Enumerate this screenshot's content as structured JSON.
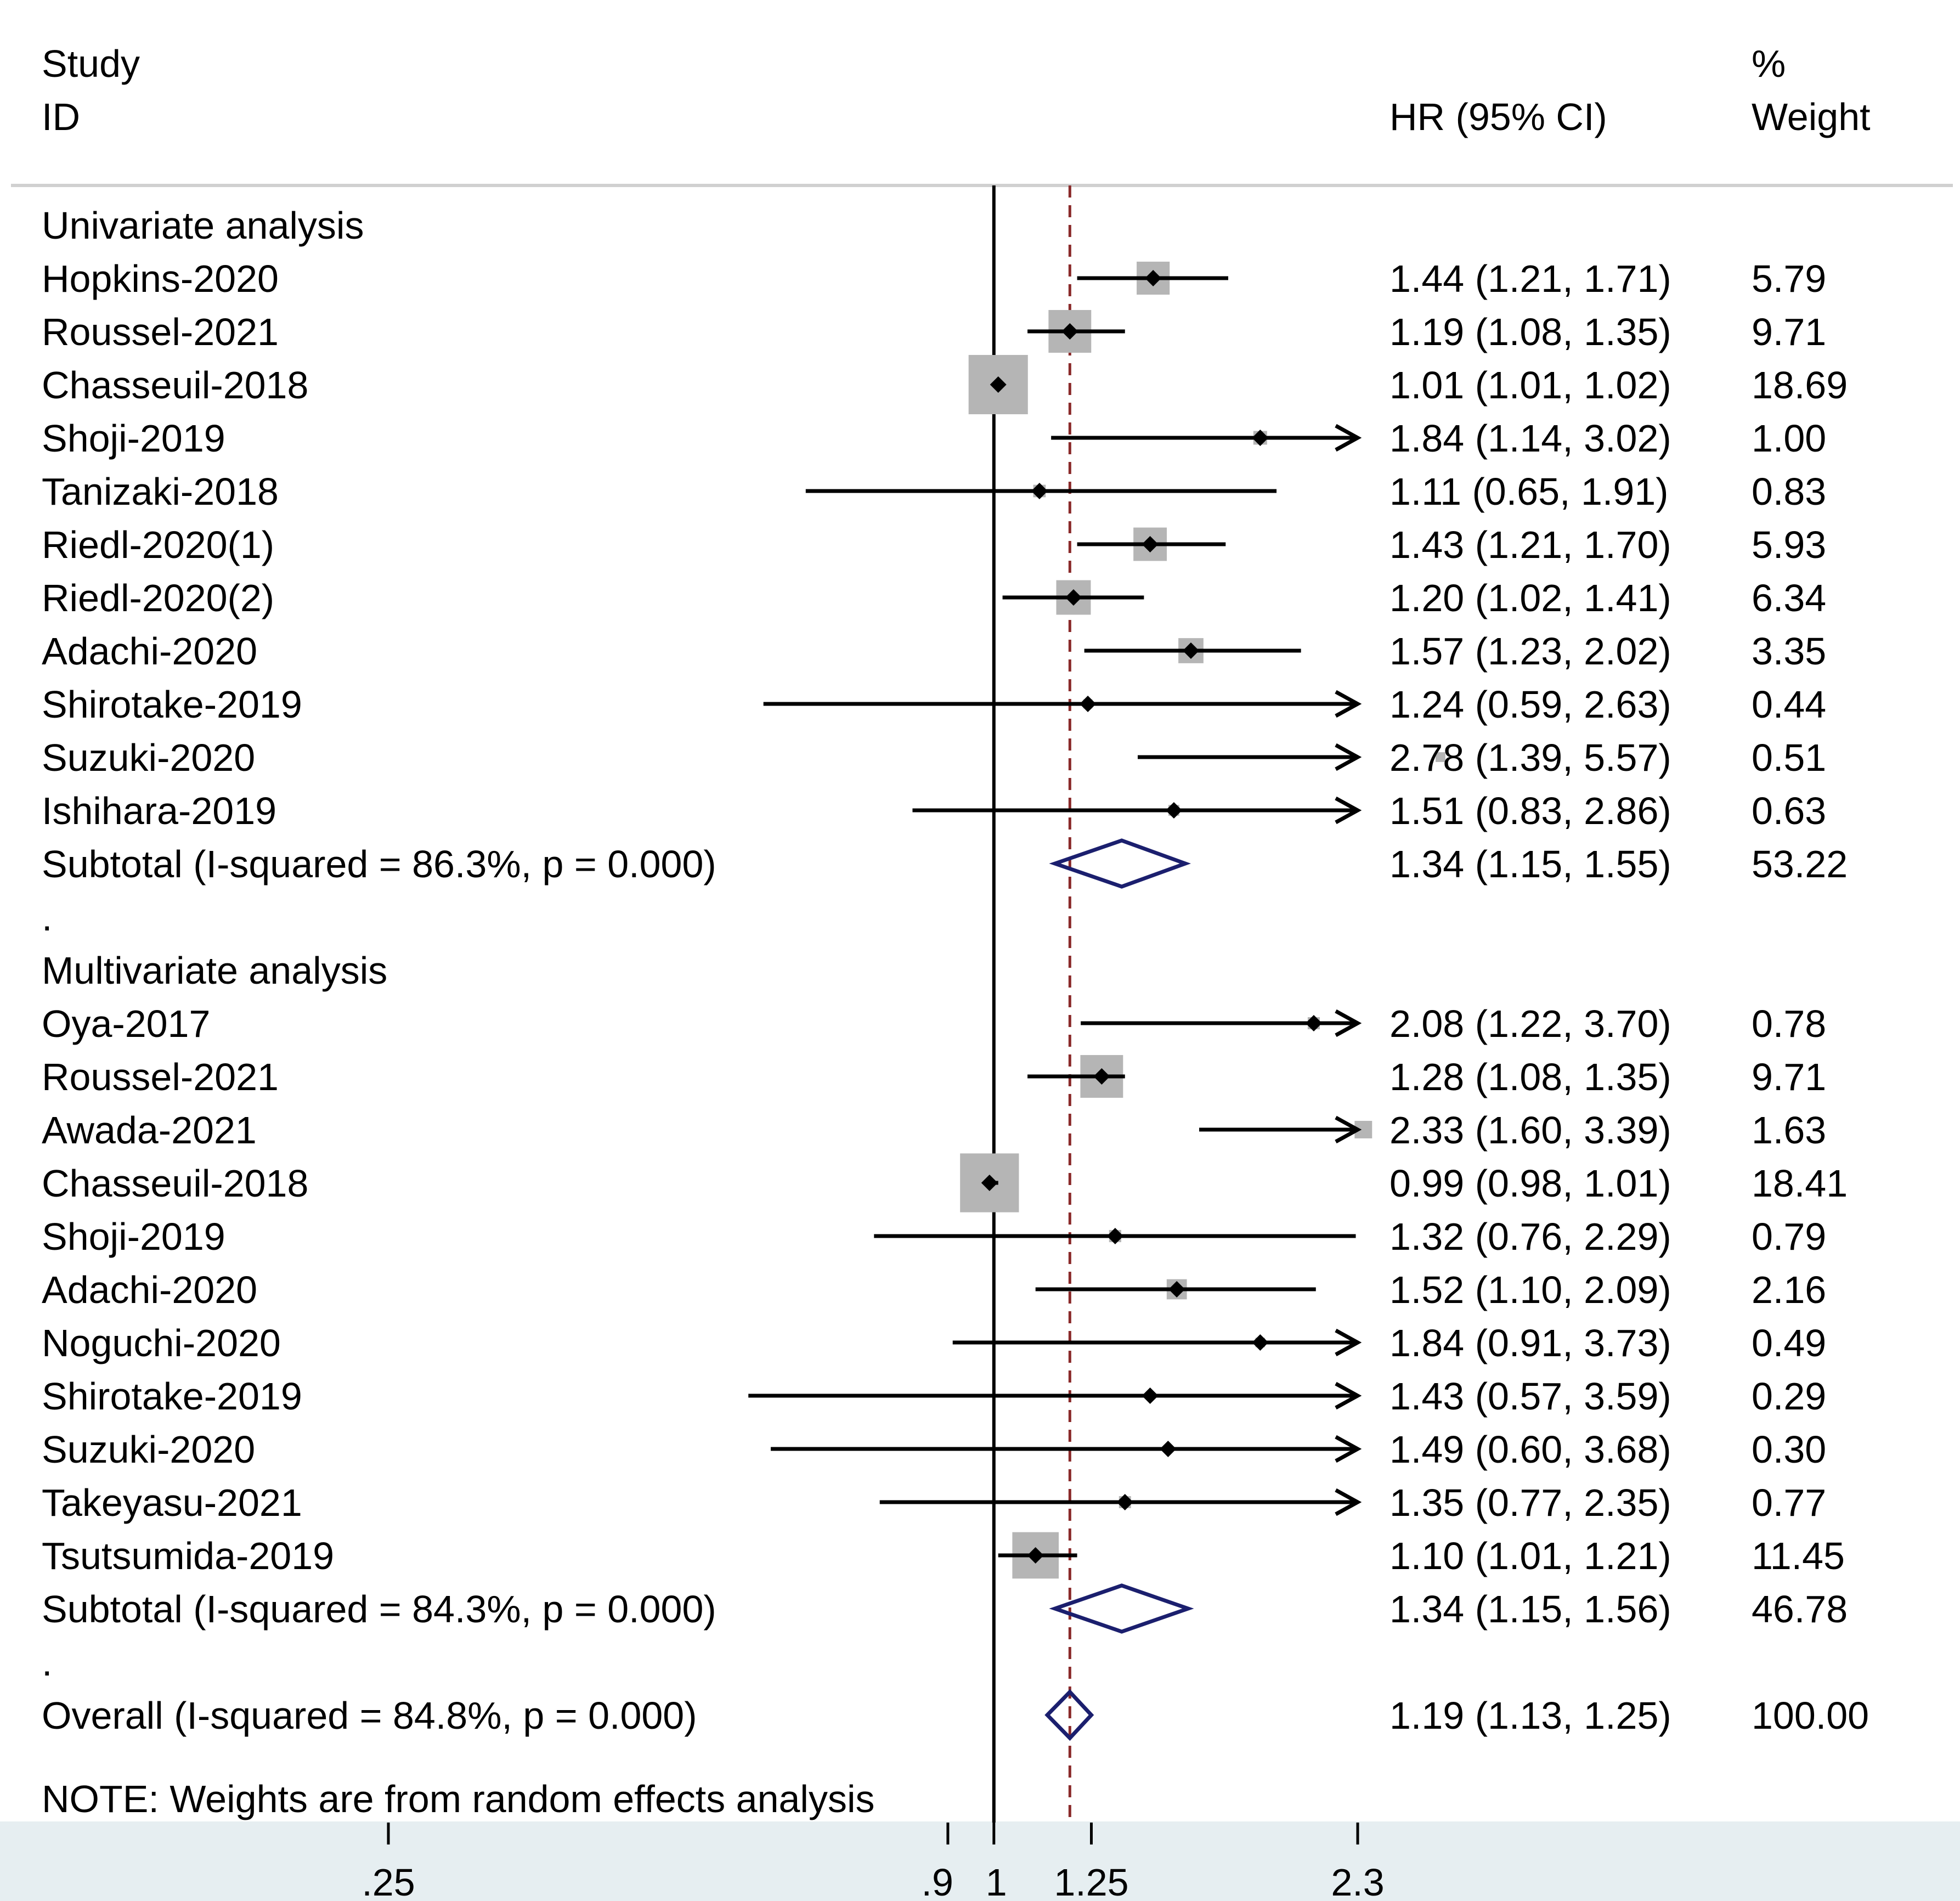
{
  "header": {
    "study_line1": "Study",
    "study_line2": "ID",
    "hr_label": "HR (95% CI)",
    "weight_line1": "%",
    "weight_line2": "Weight"
  },
  "colors": {
    "box": "#b5b5b5",
    "diamond": "#1b1f6e",
    "reference_line": "#8a2a2a",
    "axis_band": "#e6eef1",
    "header_rule": "#d0d0d0"
  },
  "chart_data": {
    "type": "forest",
    "scale": "log",
    "x_ticks": [
      {
        "value": 0.25,
        "label": ".25"
      },
      {
        "value": 0.9,
        "label": ".9"
      },
      {
        "value": 1,
        "label": "1"
      },
      {
        "value": 1.25,
        "label": "1.25"
      },
      {
        "value": 2.3,
        "label": "2.3"
      }
    ],
    "xlim": [
      0.25,
      2.3
    ],
    "null_value": 1,
    "overall_reference": 1.19,
    "rows": [
      {
        "kind": "group",
        "label": "Univariate analysis"
      },
      {
        "kind": "study",
        "label": "Hopkins-2020",
        "hr": 1.44,
        "lo": 1.21,
        "hi": 1.71,
        "hr_text": "1.44 (1.21, 1.71)",
        "weight": 5.79,
        "weight_text": "5.79"
      },
      {
        "kind": "study",
        "label": "Roussel-2021",
        "hr": 1.19,
        "lo": 1.08,
        "hi": 1.35,
        "hr_text": "1.19 (1.08, 1.35)",
        "weight": 9.71,
        "weight_text": "9.71"
      },
      {
        "kind": "study",
        "label": "Chasseuil-2018",
        "hr": 1.01,
        "lo": 1.01,
        "hi": 1.02,
        "hr_text": "1.01 (1.01, 1.02)",
        "weight": 18.69,
        "weight_text": "18.69"
      },
      {
        "kind": "study",
        "label": "Shoji-2019",
        "hr": 1.84,
        "lo": 1.14,
        "hi": 3.02,
        "hr_text": "1.84 (1.14, 3.02)",
        "weight": 1.0,
        "weight_text": "1.00"
      },
      {
        "kind": "study",
        "label": "Tanizaki-2018",
        "hr": 1.11,
        "lo": 0.65,
        "hi": 1.91,
        "hr_text": "1.11 (0.65, 1.91)",
        "weight": 0.83,
        "weight_text": "0.83"
      },
      {
        "kind": "study",
        "label": "Riedl-2020(1)",
        "hr": 1.43,
        "lo": 1.21,
        "hi": 1.7,
        "hr_text": "1.43 (1.21, 1.70)",
        "weight": 5.93,
        "weight_text": "5.93"
      },
      {
        "kind": "study",
        "label": "Riedl-2020(2)",
        "hr": 1.2,
        "lo": 1.02,
        "hi": 1.41,
        "hr_text": "1.20 (1.02, 1.41)",
        "weight": 6.34,
        "weight_text": "6.34"
      },
      {
        "kind": "study",
        "label": "Adachi-2020",
        "hr": 1.57,
        "lo": 1.23,
        "hi": 2.02,
        "hr_text": "1.57 (1.23, 2.02)",
        "weight": 3.35,
        "weight_text": "3.35"
      },
      {
        "kind": "study",
        "label": "Shirotake-2019",
        "hr": 1.24,
        "lo": 0.59,
        "hi": 2.63,
        "hr_text": "1.24 (0.59, 2.63)",
        "weight": 0.44,
        "weight_text": "0.44"
      },
      {
        "kind": "study",
        "label": "Suzuki-2020",
        "hr": 2.78,
        "lo": 1.39,
        "hi": 5.57,
        "hr_text": "2.78 (1.39, 5.57)",
        "weight": 0.51,
        "weight_text": "0.51"
      },
      {
        "kind": "study",
        "label": "Ishihara-2019",
        "hr": 1.51,
        "lo": 0.83,
        "hi": 2.86,
        "hr_text": "1.51 (0.83, 2.86)",
        "weight": 0.63,
        "weight_text": "0.63"
      },
      {
        "kind": "subtotal",
        "label": "Subtotal  (I-squared = 86.3%, p = 0.000)",
        "hr": 1.34,
        "lo": 1.15,
        "hi": 1.55,
        "hr_text": "1.34 (1.15, 1.55)",
        "weight": 53.22,
        "weight_text": "53.22"
      },
      {
        "kind": "spacer",
        "label": "."
      },
      {
        "kind": "group",
        "label": "Multivariate analysis"
      },
      {
        "kind": "study",
        "label": "Oya-2017",
        "hr": 2.08,
        "lo": 1.22,
        "hi": 3.7,
        "hr_text": "2.08 (1.22, 3.70)",
        "weight": 0.78,
        "weight_text": "0.78"
      },
      {
        "kind": "study",
        "label": "Roussel-2021",
        "hr": 1.28,
        "lo": 1.08,
        "hi": 1.35,
        "hr_text": "1.28 (1.08, 1.35)",
        "weight": 9.71,
        "weight_text": "9.71"
      },
      {
        "kind": "study",
        "label": "Awada-2021",
        "hr": 2.33,
        "lo": 1.6,
        "hi": 3.39,
        "hr_text": "2.33 (1.60, 3.39)",
        "weight": 1.63,
        "weight_text": "1.63"
      },
      {
        "kind": "study",
        "label": "Chasseuil-2018",
        "hr": 0.99,
        "lo": 0.98,
        "hi": 1.01,
        "hr_text": "0.99 (0.98, 1.01)",
        "weight": 18.41,
        "weight_text": "18.41"
      },
      {
        "kind": "study",
        "label": "Shoji-2019",
        "hr": 1.32,
        "lo": 0.76,
        "hi": 2.29,
        "hr_text": "1.32 (0.76, 2.29)",
        "weight": 0.79,
        "weight_text": "0.79"
      },
      {
        "kind": "study",
        "label": "Adachi-2020",
        "hr": 1.52,
        "lo": 1.1,
        "hi": 2.09,
        "hr_text": "1.52 (1.10, 2.09)",
        "weight": 2.16,
        "weight_text": "2.16"
      },
      {
        "kind": "study",
        "label": "Noguchi-2020",
        "hr": 1.84,
        "lo": 0.91,
        "hi": 3.73,
        "hr_text": "1.84 (0.91, 3.73)",
        "weight": 0.49,
        "weight_text": "0.49"
      },
      {
        "kind": "study",
        "label": "Shirotake-2019",
        "hr": 1.43,
        "lo": 0.57,
        "hi": 3.59,
        "hr_text": "1.43 (0.57, 3.59)",
        "weight": 0.29,
        "weight_text": "0.29"
      },
      {
        "kind": "study",
        "label": "Suzuki-2020",
        "hr": 1.49,
        "lo": 0.6,
        "hi": 3.68,
        "hr_text": "1.49 (0.60, 3.68)",
        "weight": 0.3,
        "weight_text": "0.30"
      },
      {
        "kind": "study",
        "label": "Takeyasu-2021",
        "hr": 1.35,
        "lo": 0.77,
        "hi": 2.35,
        "hr_text": "1.35 (0.77, 2.35)",
        "weight": 0.77,
        "weight_text": "0.77"
      },
      {
        "kind": "study",
        "label": "Tsutsumida-2019",
        "hr": 1.1,
        "lo": 1.01,
        "hi": 1.21,
        "hr_text": "1.10 (1.01, 1.21)",
        "weight": 11.45,
        "weight_text": "11.45"
      },
      {
        "kind": "subtotal",
        "label": "Subtotal  (I-squared = 84.3%, p = 0.000)",
        "hr": 1.34,
        "lo": 1.15,
        "hi": 1.56,
        "hr_text": "1.34 (1.15, 1.56)",
        "weight": 46.78,
        "weight_text": "46.78"
      },
      {
        "kind": "spacer",
        "label": "."
      },
      {
        "kind": "overall",
        "label": "Overall  (I-squared = 84.8%, p = 0.000)",
        "hr": 1.19,
        "lo": 1.13,
        "hi": 1.25,
        "hr_text": "1.19 (1.13, 1.25)",
        "weight": 100.0,
        "weight_text": "100.00"
      }
    ],
    "note": "NOTE: Weights are from random effects analysis"
  }
}
